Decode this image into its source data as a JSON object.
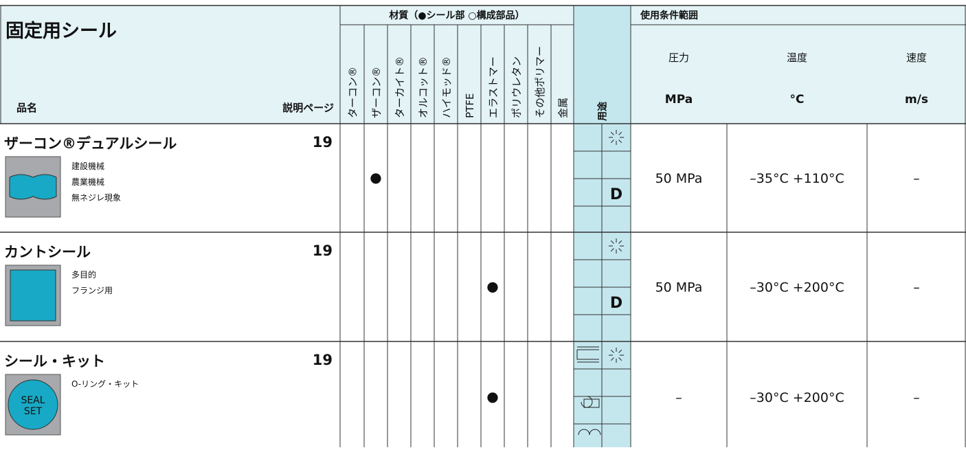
{
  "header": {
    "title": "固定用シール",
    "name_label": "品名",
    "page_label": "説明ページ",
    "materials_title": "材質（●シール部 ○構成部品）",
    "materials": [
      "ターコン®",
      "ザーコン®",
      "ターカイト®",
      "オルコット®",
      "ハイモッド®",
      "PTFE",
      "エラストマー",
      "ポリウレタン",
      "その他ポリマー",
      "金属"
    ],
    "usage": "用途",
    "conditions_title": "使用条件範囲",
    "conditions": [
      {
        "label": "圧力",
        "unit": "MPa"
      },
      {
        "label": "温度",
        "unit": "°C"
      },
      {
        "label": "速度",
        "unit": "m/s"
      }
    ]
  },
  "rows": [
    {
      "name": "ザーコン®デュアルシール",
      "page": 19,
      "features": [
        "建設機械",
        "農業機械",
        "無ネジレ現象"
      ],
      "material": "ザーコン®",
      "mark": "●",
      "usage_code": "D",
      "pressure": "50 MPa",
      "temperature": "–35°C  +110°C",
      "speed": "–"
    },
    {
      "name": "カントシール",
      "page": 19,
      "features": [
        "多目的",
        "フランジ用"
      ],
      "material": "エラストマー",
      "mark": "●",
      "usage_code": "D",
      "pressure": "50 MPa",
      "temperature": "–30°C  +200°C",
      "speed": "–"
    },
    {
      "name": "シール・キット",
      "page": 19,
      "features": [
        "O-リング・キット"
      ],
      "icon_label": [
        "SEAL",
        "SET"
      ],
      "material": "エラストマー",
      "mark": "●",
      "pressure": "–",
      "temperature": "–30°C  +200°C",
      "speed": "–"
    }
  ]
}
